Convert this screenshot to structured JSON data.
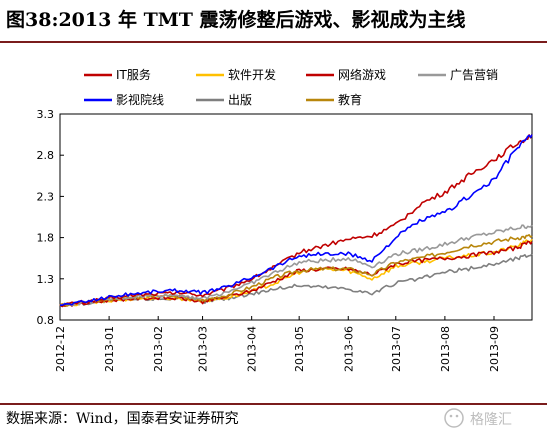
{
  "header": {
    "title": "图38:2013 年 TMT 震荡修整后游戏、影视成为主线"
  },
  "footer": {
    "source": "数据来源：Wind，国泰君安证券研究"
  },
  "watermark": {
    "icon": "wechat-icon",
    "text": "格隆汇"
  },
  "colors": {
    "it": "#c00000",
    "software": "#ffc000",
    "game": "#c00000",
    "advert": "#999999",
    "film": "#0000ff",
    "publish": "#7f7f7f",
    "edu": "#b8860b"
  },
  "chart_data": {
    "type": "line",
    "title": "",
    "xlabel": "",
    "ylabel": "",
    "ylim": [
      0.8,
      3.3
    ],
    "yticks": [
      "0.8",
      "1.3",
      "1.8",
      "2.3",
      "2.8",
      "3.3"
    ],
    "x_range": [
      "2012-12-01",
      "2013-09-25"
    ],
    "categories": [
      "2012-12",
      "2013-01",
      "2013-02",
      "2013-03",
      "2013-04",
      "2013-05",
      "2013-06",
      "2013-07",
      "2013-08",
      "2013-09"
    ],
    "grid": false,
    "legend_position": "top",
    "x": [
      "2012-12-01",
      "2012-12-16",
      "2013-01-01",
      "2013-01-16",
      "2013-02-01",
      "2013-02-16",
      "2013-03-01",
      "2013-03-16",
      "2013-04-01",
      "2013-04-16",
      "2013-05-01",
      "2013-05-16",
      "2013-06-01",
      "2013-06-16",
      "2013-07-01",
      "2013-07-16",
      "2013-08-01",
      "2013-08-16",
      "2013-09-01",
      "2013-09-16",
      "2013-09-25"
    ],
    "series": [
      {
        "name": "IT服务",
        "color_key": "it",
        "values": [
          0.98,
          1.02,
          1.06,
          1.1,
          1.12,
          1.13,
          1.1,
          1.18,
          1.3,
          1.45,
          1.62,
          1.7,
          1.78,
          1.82,
          1.95,
          2.2,
          2.35,
          2.55,
          2.75,
          2.95,
          3.05
        ]
      },
      {
        "name": "软件开发",
        "color_key": "software",
        "values": [
          0.98,
          1.0,
          1.03,
          1.06,
          1.07,
          1.06,
          1.03,
          1.07,
          1.15,
          1.25,
          1.38,
          1.42,
          1.4,
          1.3,
          1.45,
          1.5,
          1.55,
          1.58,
          1.62,
          1.7,
          1.78
        ]
      },
      {
        "name": "网络游戏",
        "color_key": "game",
        "values": [
          0.98,
          1.0,
          1.04,
          1.06,
          1.07,
          1.06,
          1.02,
          1.08,
          1.15,
          1.28,
          1.4,
          1.42,
          1.42,
          1.35,
          1.48,
          1.52,
          1.55,
          1.58,
          1.62,
          1.68,
          1.75
        ]
      },
      {
        "name": "广告营销",
        "color_key": "advert",
        "values": [
          0.98,
          1.01,
          1.05,
          1.08,
          1.1,
          1.1,
          1.06,
          1.14,
          1.25,
          1.38,
          1.5,
          1.52,
          1.55,
          1.45,
          1.6,
          1.65,
          1.72,
          1.8,
          1.86,
          1.92,
          1.95
        ]
      },
      {
        "name": "影视院线",
        "color_key": "film",
        "values": [
          0.98,
          1.02,
          1.08,
          1.12,
          1.15,
          1.16,
          1.13,
          1.2,
          1.32,
          1.45,
          1.58,
          1.6,
          1.6,
          1.52,
          1.8,
          2.0,
          2.1,
          2.3,
          2.5,
          2.9,
          3.05
        ]
      },
      {
        "name": "出版",
        "color_key": "publish",
        "values": [
          0.98,
          1.0,
          1.03,
          1.05,
          1.06,
          1.06,
          1.02,
          1.06,
          1.12,
          1.18,
          1.22,
          1.2,
          1.18,
          1.12,
          1.25,
          1.3,
          1.38,
          1.42,
          1.48,
          1.55,
          1.6
        ]
      },
      {
        "name": "教育",
        "color_key": "edu",
        "values": [
          0.98,
          1.01,
          1.05,
          1.08,
          1.09,
          1.08,
          1.04,
          1.1,
          1.2,
          1.32,
          1.4,
          1.42,
          1.42,
          1.35,
          1.5,
          1.55,
          1.62,
          1.7,
          1.75,
          1.8,
          1.82
        ]
      }
    ]
  }
}
